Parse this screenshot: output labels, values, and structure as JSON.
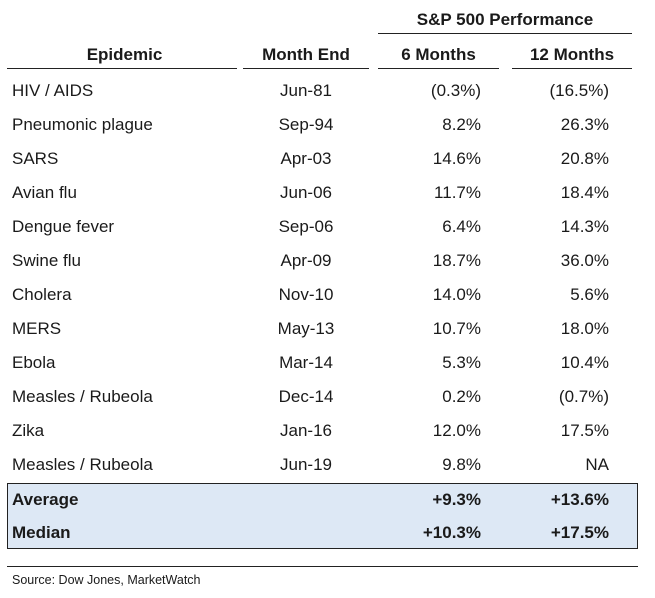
{
  "table": {
    "group_header": "S&P 500 Performance",
    "columns": [
      "Epidemic",
      "Month End",
      "6 Months",
      "12 Months"
    ],
    "rows": [
      {
        "epidemic": "HIV / AIDS",
        "month_end": "Jun-81",
        "six_months": "(0.3%)",
        "twelve_months": "(16.5%)"
      },
      {
        "epidemic": "Pneumonic plague",
        "month_end": "Sep-94",
        "six_months": "8.2%",
        "twelve_months": "26.3%"
      },
      {
        "epidemic": "SARS",
        "month_end": "Apr-03",
        "six_months": "14.6%",
        "twelve_months": "20.8%"
      },
      {
        "epidemic": "Avian flu",
        "month_end": "Jun-06",
        "six_months": "11.7%",
        "twelve_months": "18.4%"
      },
      {
        "epidemic": "Dengue fever",
        "month_end": "Sep-06",
        "six_months": "6.4%",
        "twelve_months": "14.3%"
      },
      {
        "epidemic": "Swine flu",
        "month_end": "Apr-09",
        "six_months": "18.7%",
        "twelve_months": "36.0%"
      },
      {
        "epidemic": "Cholera",
        "month_end": "Nov-10",
        "six_months": "14.0%",
        "twelve_months": "5.6%"
      },
      {
        "epidemic": "MERS",
        "month_end": "May-13",
        "six_months": "10.7%",
        "twelve_months": "18.0%"
      },
      {
        "epidemic": "Ebola",
        "month_end": "Mar-14",
        "six_months": "5.3%",
        "twelve_months": "10.4%"
      },
      {
        "epidemic": "Measles / Rubeola",
        "month_end": "Dec-14",
        "six_months": "0.2%",
        "twelve_months": "(0.7%)"
      },
      {
        "epidemic": "Zika",
        "month_end": "Jan-16",
        "six_months": "12.0%",
        "twelve_months": "17.5%"
      },
      {
        "epidemic": "Measles / Rubeola",
        "month_end": "Jun-19",
        "six_months": "9.8%",
        "twelve_months": "NA"
      }
    ],
    "summary": [
      {
        "label": "Average",
        "six_months": "+9.3%",
        "twelve_months": "+13.6%"
      },
      {
        "label": "Median",
        "six_months": "+10.3%",
        "twelve_months": "+17.5%"
      }
    ]
  },
  "source": "Source: Dow Jones, MarketWatch",
  "colors": {
    "summary_background": "#dde8f5",
    "text": "#1a1a1a",
    "rules": "#222222"
  }
}
